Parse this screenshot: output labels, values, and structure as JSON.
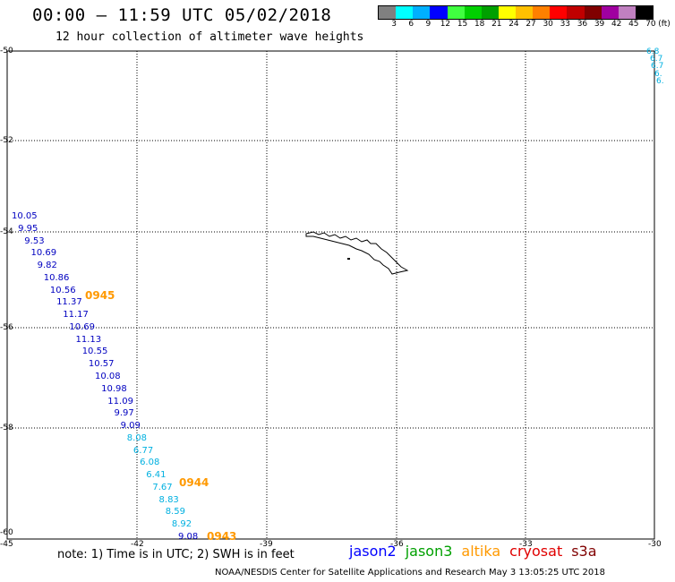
{
  "header": {
    "title": "00:00 – 11:59 UTC 05/02/2018",
    "subtitle": "12 hour collection of altimeter wave heights"
  },
  "colorbar": {
    "colors": [
      "#808080",
      "#00ffff",
      "#00b0ff",
      "#0000ff",
      "#40ff40",
      "#00d000",
      "#00a000",
      "#ffff00",
      "#ffc000",
      "#ff8000",
      "#ff0000",
      "#c00000",
      "#800000",
      "#a000a0",
      "#c080c0",
      "#000000"
    ],
    "labels": [
      "3",
      "6",
      "9",
      "12",
      "15",
      "18",
      "21",
      "24",
      "27",
      "30",
      "33",
      "36",
      "39",
      "42",
      "45",
      "70"
    ],
    "unit": "(ft)"
  },
  "map": {
    "lat_ticks": [
      "-50",
      "-52",
      "-54",
      "-56",
      "-58",
      "-60"
    ],
    "lon_ticks": [
      "-45",
      "-42",
      "-39",
      "-36",
      "-33",
      "-30"
    ]
  },
  "track_values": [
    {
      "v": "10.05",
      "color": "#0000c0"
    },
    {
      "v": "9.95",
      "color": "#0000c0"
    },
    {
      "v": "9.53",
      "color": "#0000c0"
    },
    {
      "v": "10.69",
      "color": "#0000c0"
    },
    {
      "v": "9.82",
      "color": "#0000c0"
    },
    {
      "v": "10.86",
      "color": "#0000c0"
    },
    {
      "v": "10.56",
      "color": "#0000c0"
    },
    {
      "v": "11.37",
      "color": "#0000c0"
    },
    {
      "v": "11.17",
      "color": "#0000c0"
    },
    {
      "v": "10.69",
      "color": "#0000c0"
    },
    {
      "v": "11.13",
      "color": "#0000c0"
    },
    {
      "v": "10.55",
      "color": "#0000c0"
    },
    {
      "v": "10.57",
      "color": "#0000c0"
    },
    {
      "v": "10.08",
      "color": "#0000c0"
    },
    {
      "v": "10.98",
      "color": "#0000c0"
    },
    {
      "v": "11.09",
      "color": "#0000c0"
    },
    {
      "v": "9.97",
      "color": "#0000c0"
    },
    {
      "v": "9.09",
      "color": "#0000c0"
    },
    {
      "v": "8.08",
      "color": "#00b0e0"
    },
    {
      "v": "6.77",
      "color": "#00b0e0"
    },
    {
      "v": "6.08",
      "color": "#00b0e0"
    },
    {
      "v": "6.41",
      "color": "#00b0e0"
    },
    {
      "v": "7.67",
      "color": "#00b0e0"
    },
    {
      "v": "8.83",
      "color": "#00b0e0"
    },
    {
      "v": "8.59",
      "color": "#00b0e0"
    },
    {
      "v": "8.92",
      "color": "#00b0e0"
    },
    {
      "v": "9.08",
      "color": "#0000c0"
    }
  ],
  "times": [
    "0945",
    "0944",
    "0943"
  ],
  "corner_values": [
    "6.8",
    "6.7",
    "6.7",
    "6.",
    "6."
  ],
  "footer": {
    "note": "note: 1) Time is in UTC; 2) SWH is in feet",
    "legend": [
      {
        "name": "jason2",
        "color": "#0000ff"
      },
      {
        "name": "jason3",
        "color": "#00a000"
      },
      {
        "name": "altika",
        "color": "#ff9900"
      },
      {
        "name": "cryosat",
        "color": "#e00000"
      },
      {
        "name": "s3a",
        "color": "#800000"
      }
    ],
    "credit": "NOAA/NESDIS Center for Satellite Applications and Research    May  3 13:05:25 UTC 2018"
  }
}
